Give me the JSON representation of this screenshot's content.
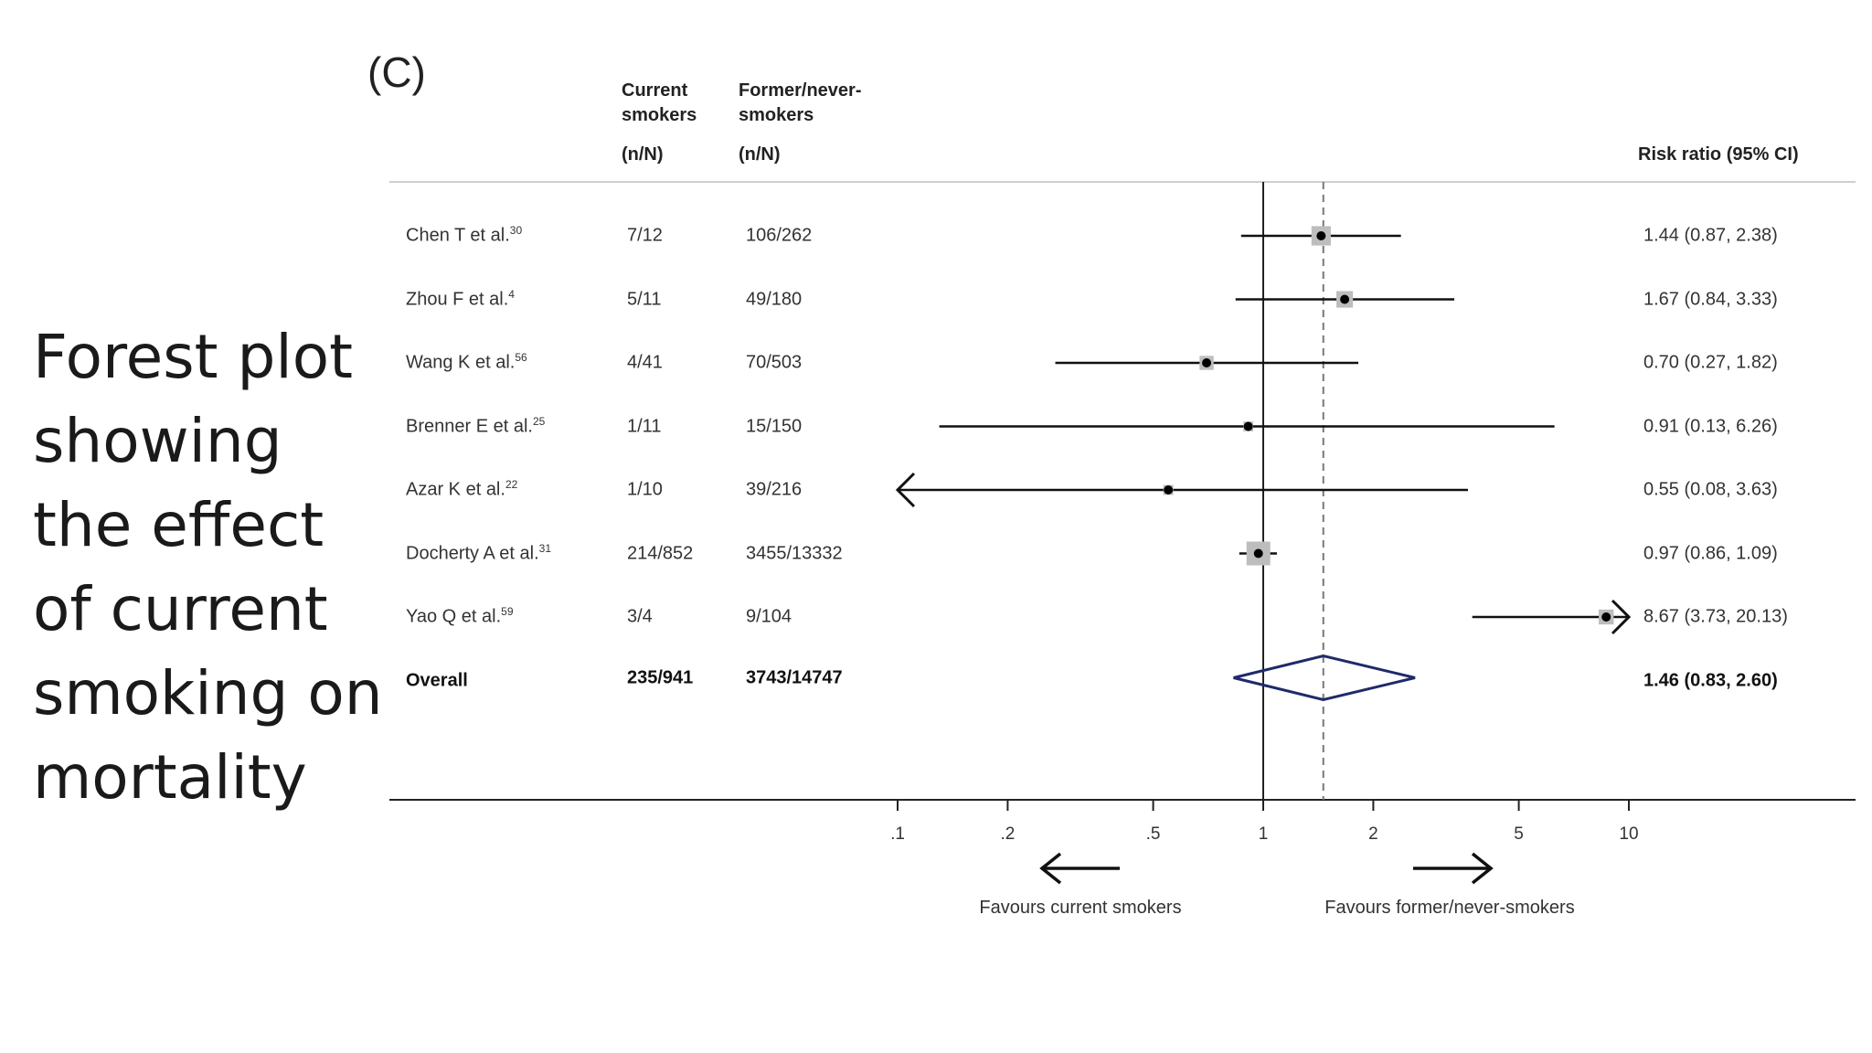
{
  "slide": {
    "title_lines": [
      "Forest plot",
      "showing",
      "the effect",
      "of current",
      "smoking on",
      "mortality"
    ]
  },
  "chart_data": {
    "type": "forest",
    "panel_label": "(C)",
    "columns": {
      "current_line1": "Current",
      "current_line2": "smokers",
      "current_line3": "(n/N)",
      "former_line1": "Former/never-",
      "former_line2": "smokers",
      "former_line3": "(n/N)",
      "rr": "Risk ratio (95% CI)"
    },
    "studies": [
      {
        "name": "Chen T et al.",
        "ref": "30",
        "current": "7/12",
        "former": "106/262",
        "rr": 1.44,
        "lo": 0.87,
        "hi": 2.38,
        "label": "1.44 (0.87, 2.38)"
      },
      {
        "name": "Zhou F et al.",
        "ref": "4",
        "current": "5/11",
        "former": "49/180",
        "rr": 1.67,
        "lo": 0.84,
        "hi": 3.33,
        "label": "1.67 (0.84, 3.33)"
      },
      {
        "name": "Wang K et al.",
        "ref": "56",
        "current": "4/41",
        "former": "70/503",
        "rr": 0.7,
        "lo": 0.27,
        "hi": 1.82,
        "label": "0.70 (0.27, 1.82)"
      },
      {
        "name": "Brenner E et al.",
        "ref": "25",
        "current": "1/11",
        "former": "15/150",
        "rr": 0.91,
        "lo": 0.13,
        "hi": 6.26,
        "label": "0.91 (0.13, 6.26)"
      },
      {
        "name": "Azar K et al.",
        "ref": "22",
        "current": "1/10",
        "former": "39/216",
        "rr": 0.55,
        "lo": 0.08,
        "hi": 3.63,
        "label": "0.55 (0.08, 3.63)"
      },
      {
        "name": "Docherty A et al.",
        "ref": "31",
        "current": "214/852",
        "former": "3455/13332",
        "rr": 0.97,
        "lo": 0.86,
        "hi": 1.09,
        "label": "0.97 (0.86, 1.09)"
      },
      {
        "name": "Yao Q et al.",
        "ref": "59",
        "current": "3/4",
        "former": "9/104",
        "rr": 8.67,
        "lo": 3.73,
        "hi": 20.13,
        "label": "8.67 (3.73, 20.13)"
      }
    ],
    "overall": {
      "name": "Overall",
      "current": "235/941",
      "former": "3743/14747",
      "rr": 1.46,
      "lo": 0.83,
      "hi": 2.6,
      "label": "1.46 (0.83, 2.60)"
    },
    "x_scale": "log",
    "x_range": [
      0.1,
      10
    ],
    "x_ticks": [
      {
        "value": 0.1,
        "label": ".1"
      },
      {
        "value": 0.2,
        "label": ".2"
      },
      {
        "value": 0.5,
        "label": ".5"
      },
      {
        "value": 1,
        "label": "1"
      },
      {
        "value": 2,
        "label": "2"
      },
      {
        "value": 5,
        "label": "5"
      },
      {
        "value": 10,
        "label": "10"
      }
    ],
    "reference_line": 1,
    "favours_left": "Favours current smokers",
    "favours_right": "Favours former/never-smokers"
  }
}
